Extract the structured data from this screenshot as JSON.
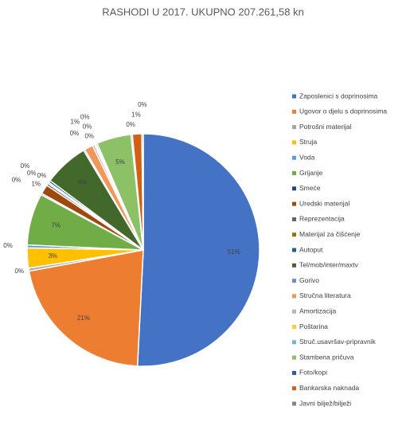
{
  "chart_data": {
    "type": "pie",
    "title": "RASHODI U 2017.  UKUPNO   207.261,58 kn",
    "categories": [
      "Zaposlenici s doprinosima",
      "Ugovor o djelu s doprinosima",
      "Potrošni materijal",
      "Struja",
      "Voda",
      "Grijanje",
      "Smeće",
      "Uredski materijal",
      "Reprezentacija",
      "Materijal za čišćenje",
      "Autoput",
      "Tel/mob/inter/maxtv",
      "Gorivo",
      "Stručna literatura",
      "Amortizacija",
      "Poštarina",
      "Struč.usavršav-pripravnik",
      "Stambena pričuva",
      "Foto/kopi",
      "Bankarska naknada",
      "Javni biljež/bilježi"
    ],
    "values": [
      50.8,
      21.3,
      0.4,
      2.8,
      0.4,
      7.2,
      0.2,
      1.3,
      0.3,
      0.2,
      0.3,
      6.2,
      0.2,
      1.2,
      0.3,
      0.2,
      0.2,
      4.8,
      0.2,
      1.3,
      0.2
    ],
    "value_labels": [
      "51%",
      "21%",
      "0%",
      "3%",
      "0%",
      "7%",
      "0%",
      "1%",
      "0%",
      "0%",
      "0%",
      "6%",
      "0%",
      "1%",
      "0%",
      "0%",
      "0%",
      "5%",
      "0%",
      "1%",
      "0%"
    ],
    "colors": [
      "#4472c4",
      "#ed7d31",
      "#a5a5a5",
      "#ffc000",
      "#5b9bd5",
      "#70ad47",
      "#264478",
      "#9e480e",
      "#636363",
      "#997300",
      "#255e91",
      "#43682b",
      "#698ed0",
      "#f1975a",
      "#b7b7b7",
      "#ffcd33",
      "#7cafdd",
      "#8cc168",
      "#335aa1",
      "#d26012",
      "#848484"
    ],
    "legend": "right"
  }
}
